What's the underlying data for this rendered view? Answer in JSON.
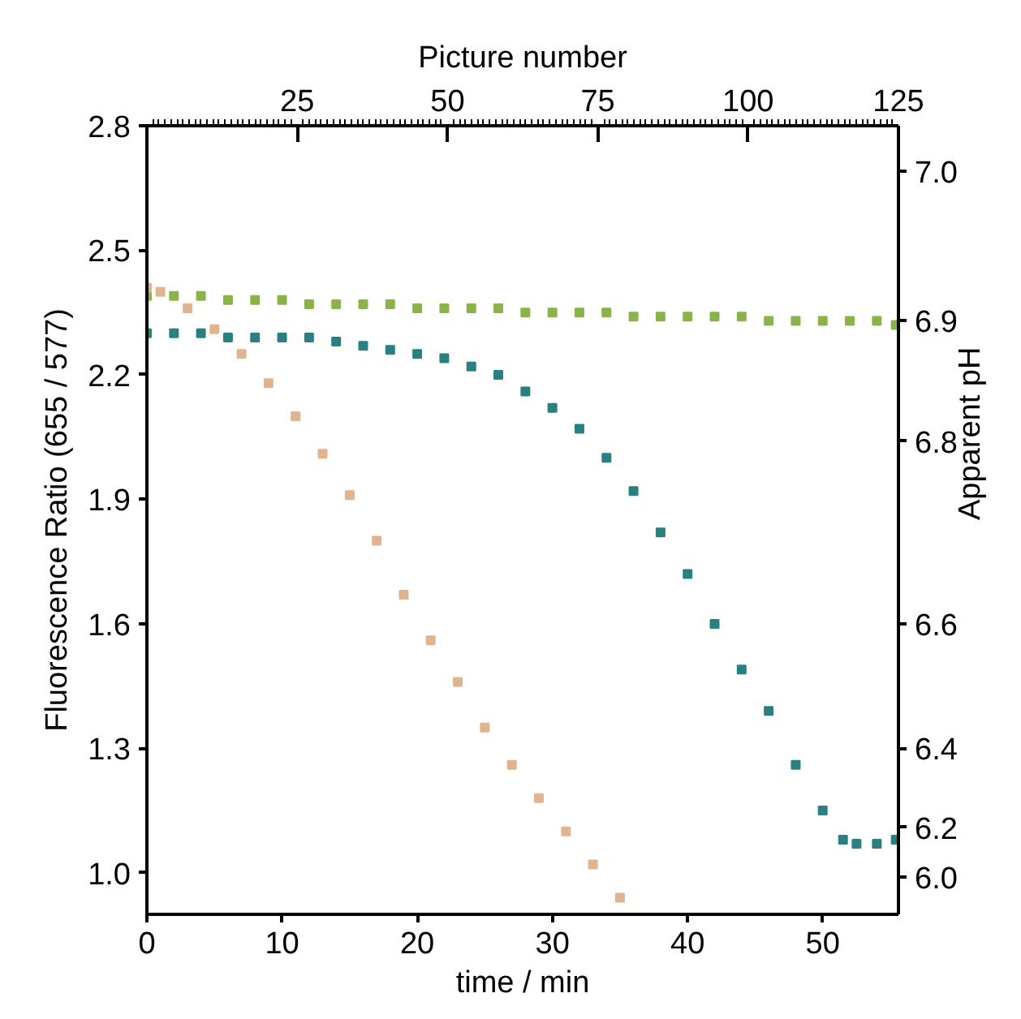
{
  "chart_data": {
    "type": "scatter",
    "xlabel": "time / min",
    "ylabel": "Fluorescence Ratio (655 / 577)",
    "y2label": "Apparent pH",
    "x2label": "Picture number",
    "xlim": [
      0,
      55.6
    ],
    "xticks": [
      0,
      10,
      20,
      30,
      40,
      50
    ],
    "ylim": [
      0.9,
      2.8
    ],
    "yticks": [
      {
        "value": 1.0,
        "label": "1.0"
      },
      1.3,
      1.6,
      1.9,
      2.2,
      2.5,
      2.8
    ],
    "y2_categories": [
      null,
      null,
      null,
      null,
      null,
      null,
      null,
      null,
      null,
      null,
      null,
      "7.0",
      null,
      null,
      null,
      null,
      null,
      null,
      null,
      null,
      null,
      null,
      null,
      null,
      null,
      null,
      null,
      null,
      null,
      null,
      null,
      null,
      null,
      null,
      null,
      null,
      null,
      null,
      null,
      null,
      null,
      null,
      null,
      null,
      null,
      null,
      null,
      "6.9",
      null,
      null,
      null,
      null,
      null,
      null,
      null,
      null,
      null,
      null,
      null,
      null,
      null,
      null,
      null,
      null,
      null,
      null,
      null,
      null,
      null,
      null,
      null,
      null,
      null,
      null,
      null,
      null,
      "6.8",
      null,
      null,
      null,
      null,
      null,
      null,
      null,
      null,
      null,
      null,
      null,
      null,
      null,
      null,
      null,
      null,
      null,
      null,
      null,
      null,
      null,
      null,
      null,
      null,
      null,
      null,
      null,
      null,
      null,
      null,
      null,
      null,
      null,
      null,
      null,
      null,
      null,
      null,
      null,
      null,
      null,
      null,
      null,
      "6.6",
      null,
      null,
      null,
      null,
      null,
      null,
      null,
      null,
      null,
      null,
      null,
      null,
      null,
      null,
      null,
      null,
      null,
      null,
      null,
      null,
      null,
      null,
      null,
      null,
      null,
      null,
      null,
      null,
      null,
      "6.4",
      null,
      null,
      null,
      null,
      null,
      null,
      null,
      null,
      null,
      null,
      null,
      null,
      null,
      null,
      null,
      null,
      null,
      null,
      "6.2",
      null,
      null,
      null,
      null,
      null,
      null,
      null,
      null,
      null,
      null,
      null,
      "6.0",
      null,
      null,
      null,
      null,
      null,
      null,
      null,
      null,
      null
    ],
    "x2lim": [
      0,
      125
    ],
    "x2ticks": [
      25,
      50,
      75,
      100,
      125,
      {
        "value": 1,
        "label": null
      },
      {
        "value": 2,
        "label": null
      },
      {
        "value": 3,
        "label": null
      },
      {
        "value": 4,
        "label": null
      },
      {
        "value": 5,
        "label": null
      },
      {
        "value": 6,
        "label": null
      },
      {
        "value": 7,
        "label": null
      },
      {
        "value": 8,
        "label": null
      },
      {
        "value": 9,
        "label": null
      },
      {
        "value": 10,
        "label": null
      },
      {
        "value": 11,
        "label": null
      },
      {
        "value": 12,
        "label": null
      },
      {
        "value": 13,
        "label": null
      },
      {
        "value": 14,
        "label": null
      },
      {
        "value": 15,
        "label": null
      },
      {
        "value": 16,
        "label": null
      },
      {
        "value": 17,
        "label": null
      },
      {
        "value": 18,
        "label": null
      },
      {
        "value": 19,
        "label": null
      },
      {
        "value": 20,
        "label": null
      },
      {
        "value": 21,
        "label": null
      },
      {
        "value": 22,
        "label": null
      },
      {
        "value": 23,
        "label": null
      },
      {
        "value": 24,
        "label": null
      },
      {
        "value": 26,
        "label": null
      },
      {
        "value": 27,
        "label": null
      },
      {
        "value": 28,
        "label": null
      },
      {
        "value": 29,
        "label": null
      },
      {
        "value": 30,
        "label": null
      },
      {
        "value": 31,
        "label": null
      },
      {
        "value": 32,
        "label": null
      },
      {
        "value": 33,
        "label": null
      },
      {
        "value": 34,
        "label": null
      },
      {
        "value": 35,
        "label": null
      },
      {
        "value": 36,
        "label": null
      },
      {
        "value": 37,
        "label": null
      },
      {
        "value": 38,
        "label": null
      },
      {
        "value": 39,
        "label": null
      },
      {
        "value": 40,
        "label": null
      },
      {
        "value": 41,
        "label": null
      },
      {
        "value": 42,
        "label": null
      },
      {
        "value": 43,
        "label": null
      },
      {
        "value": 44,
        "label": null
      },
      {
        "value": 45,
        "label": null
      },
      {
        "value": 46,
        "label": null
      },
      {
        "value": 47,
        "label": null
      },
      {
        "value": 48,
        "label": null
      },
      {
        "value": 49,
        "label": null
      },
      {
        "value": 51,
        "label": null
      },
      {
        "value": 52,
        "label": null
      },
      {
        "value": 53,
        "label": null
      },
      {
        "value": 54,
        "label": null
      },
      {
        "value": 55,
        "label": null
      },
      {
        "value": 56,
        "label": null
      },
      {
        "value": 57,
        "label": null
      },
      {
        "value": 58,
        "label": null
      },
      {
        "value": 59,
        "label": null
      },
      {
        "value": 60,
        "label": null
      },
      {
        "value": 61,
        "label": null
      },
      {
        "value": 62,
        "label": null
      },
      {
        "value": 63,
        "label": null
      },
      {
        "value": 64,
        "label": null
      },
      {
        "value": 65,
        "label": null
      },
      {
        "value": 66,
        "label": null
      },
      {
        "value": 67,
        "label": null
      },
      {
        "value": 68,
        "label": null
      },
      {
        "value": 69,
        "label": null
      },
      {
        "value": 70,
        "label": null
      },
      {
        "value": 71,
        "label": null
      },
      {
        "value": 72,
        "label": null
      },
      {
        "value": 73,
        "label": null
      },
      {
        "value": 74,
        "label": null
      },
      {
        "value": 76,
        "label": null
      },
      {
        "value": 77,
        "label": null
      },
      {
        "value": 78,
        "label": null
      },
      {
        "value": 79,
        "label": null
      },
      {
        "value": 80,
        "label": null
      },
      {
        "value": 81,
        "label": null
      },
      {
        "value": 82,
        "label": null
      },
      {
        "value": 83,
        "label": null
      },
      {
        "value": 84,
        "label": null
      },
      {
        "value": 85,
        "label": null
      },
      {
        "value": 86,
        "label": null
      },
      {
        "value": 87,
        "label": null
      },
      {
        "value": 88,
        "label": null
      },
      {
        "value": 89,
        "label": null
      },
      {
        "value": 90,
        "label": null
      },
      {
        "value": 91,
        "label": null
      },
      {
        "value": 92,
        "label": null
      },
      {
        "value": 93,
        "label": null
      },
      {
        "value": 94,
        "label": null
      },
      {
        "value": 95,
        "label": null
      },
      {
        "value": 96,
        "label": null
      },
      {
        "value": 97,
        "label": null
      },
      {
        "value": 98,
        "label": null
      },
      {
        "value": 99,
        "label": null
      },
      {
        "value": 101,
        "label": null
      },
      {
        "value": 102,
        "label": null
      },
      {
        "value": 103,
        "label": null
      },
      {
        "value": 104,
        "label": null
      },
      {
        "value": 105,
        "label": null
      },
      {
        "value": 106,
        "label": null
      },
      {
        "value": 107,
        "label": null
      },
      {
        "value": 108,
        "label": null
      },
      {
        "value": 109,
        "label": null
      },
      {
        "value": 110,
        "label": null
      },
      {
        "value": 111,
        "label": null
      },
      {
        "value": 112,
        "label": null
      },
      {
        "value": 113,
        "label": null
      },
      {
        "value": 114,
        "label": null
      },
      {
        "value": 115,
        "label": null
      },
      {
        "value": 116,
        "label": null
      },
      {
        "value": 117,
        "label": null
      },
      {
        "value": 118,
        "label": null
      },
      {
        "value": 119,
        "label": null
      },
      {
        "value": 120,
        "label": null
      },
      {
        "value": 121,
        "label": null
      },
      {
        "value": 122,
        "label": null
      },
      {
        "value": 123,
        "label": null
      },
      {
        "value": 124,
        "label": null
      }
    ],
    "marker": "square",
    "grid": false,
    "series": [
      {
        "color": "#8ab34a",
        "x": [
          0,
          2,
          4,
          6,
          8,
          10,
          12,
          14,
          16,
          18,
          20,
          22,
          24,
          26,
          28,
          30,
          32,
          34,
          36,
          38,
          40,
          42,
          44,
          46,
          48,
          50,
          52,
          54,
          55.4
        ],
        "values": [
          2.39,
          2.39,
          2.39,
          2.38,
          2.38,
          2.38,
          2.37,
          2.37,
          2.37,
          2.37,
          2.36,
          2.36,
          2.36,
          2.36,
          2.35,
          2.35,
          2.35,
          2.35,
          2.34,
          2.34,
          2.34,
          2.34,
          2.34,
          2.33,
          2.33,
          2.33,
          2.33,
          2.33,
          2.32
        ]
      },
      {
        "color": "#2a8080",
        "x": [
          0,
          2,
          4,
          6,
          8,
          10,
          12,
          14,
          16,
          18,
          20,
          22,
          24,
          26,
          28,
          30,
          32,
          34,
          36,
          38,
          40,
          42,
          44,
          46,
          48,
          50,
          51.5,
          52.5,
          54,
          55.4
        ],
        "values": [
          2.3,
          2.3,
          2.3,
          2.29,
          2.29,
          2.29,
          2.29,
          2.28,
          2.27,
          2.26,
          2.25,
          2.24,
          2.22,
          2.2,
          2.16,
          2.12,
          2.07,
          2.0,
          1.92,
          1.82,
          1.72,
          1.6,
          1.49,
          1.39,
          1.26,
          1.15,
          1.08,
          1.07,
          1.07,
          1.08
        ]
      },
      {
        "color": "#e0b48e",
        "x": [
          0,
          1,
          3,
          5,
          7,
          9,
          11,
          13,
          15,
          17,
          19,
          21,
          23,
          25,
          27,
          29,
          31,
          33,
          35
        ],
        "values": [
          2.41,
          2.4,
          2.36,
          2.31,
          2.25,
          2.18,
          2.1,
          2.01,
          1.91,
          1.8,
          1.67,
          1.56,
          1.46,
          1.35,
          1.26,
          1.18,
          1.1,
          1.02,
          0.94
        ]
      }
    ]
  }
}
